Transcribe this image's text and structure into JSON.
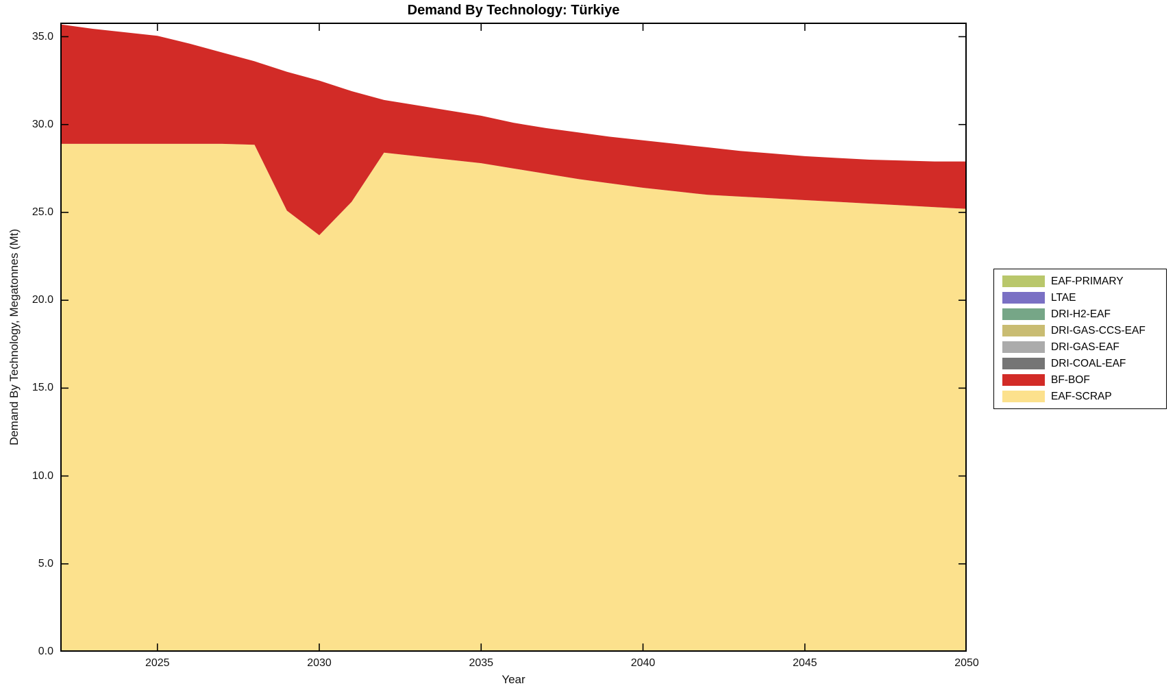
{
  "title": "Demand By Technology: Türkiye",
  "axes": {
    "xlabel": "Year",
    "ylabel": "Demand By Technology, Megatonnes (Mt)",
    "xtick_labels": [
      "2025",
      "2030",
      "2035",
      "2040",
      "2045",
      "2050"
    ],
    "ytick_labels": [
      "0.0",
      "5.0",
      "10.0",
      "15.0",
      "20.0",
      "25.0",
      "30.0",
      "35.0"
    ]
  },
  "legend": {
    "entries": [
      {
        "label": "EAF-PRIMARY",
        "color": "#b9c76b"
      },
      {
        "label": "LTAE",
        "color": "#7a70c4"
      },
      {
        "label": "DRI-H2-EAF",
        "color": "#76a687"
      },
      {
        "label": "DRI-GAS-CCS-EAF",
        "color": "#c9bc72"
      },
      {
        "label": "DRI-GAS-EAF",
        "color": "#ababab"
      },
      {
        "label": "DRI-COAL-EAF",
        "color": "#757575"
      },
      {
        "label": "BF-BOF",
        "color": "#d22b27"
      },
      {
        "label": "EAF-SCRAP",
        "color": "#fce18d"
      }
    ]
  },
  "style": {
    "frame_color": "#000000",
    "tick_length": 12
  },
  "chart_data": {
    "type": "area",
    "stacked": true,
    "title": "Demand By Technology: Türkiye",
    "xlabel": "Year",
    "ylabel": "Demand By Technology, Megatonnes (Mt)",
    "xlim": [
      2022,
      2050
    ],
    "ylim": [
      0,
      35.8
    ],
    "xticks": [
      2025,
      2030,
      2035,
      2040,
      2045,
      2050
    ],
    "yticks": [
      0,
      5,
      10,
      15,
      20,
      25,
      30,
      35
    ],
    "grid": false,
    "legend_position": "outside-right",
    "x": [
      2022,
      2023,
      2024,
      2025,
      2026,
      2027,
      2028,
      2029,
      2030,
      2031,
      2032,
      2033,
      2034,
      2035,
      2036,
      2037,
      2038,
      2039,
      2040,
      2041,
      2042,
      2043,
      2044,
      2045,
      2046,
      2047,
      2048,
      2049,
      2050
    ],
    "series": [
      {
        "name": "EAF-SCRAP",
        "color": "#fce18d",
        "values": [
          28.9,
          28.9,
          28.9,
          28.9,
          28.9,
          28.9,
          28.85,
          25.1,
          23.7,
          25.6,
          28.4,
          28.2,
          28.0,
          27.8,
          27.5,
          27.2,
          26.9,
          26.65,
          26.4,
          26.2,
          26.0,
          25.9,
          25.8,
          25.7,
          25.6,
          25.5,
          25.4,
          25.3,
          25.2
        ]
      },
      {
        "name": "BF-BOF",
        "color": "#d22b27",
        "values": [
          6.8,
          6.55,
          6.35,
          6.15,
          5.7,
          5.2,
          4.75,
          7.9,
          8.8,
          6.3,
          3.0,
          2.9,
          2.8,
          2.7,
          2.6,
          2.6,
          2.65,
          2.65,
          2.7,
          2.7,
          2.7,
          2.6,
          2.55,
          2.5,
          2.5,
          2.5,
          2.55,
          2.6,
          2.7
        ]
      },
      {
        "name": "DRI-COAL-EAF",
        "color": "#757575",
        "values": [
          0,
          0,
          0,
          0,
          0,
          0,
          0,
          0,
          0,
          0,
          0,
          0,
          0,
          0,
          0,
          0,
          0,
          0,
          0,
          0,
          0,
          0,
          0,
          0,
          0,
          0,
          0,
          0,
          0
        ]
      },
      {
        "name": "DRI-GAS-EAF",
        "color": "#ababab",
        "values": [
          0,
          0,
          0,
          0,
          0,
          0,
          0,
          0,
          0,
          0,
          0,
          0,
          0,
          0,
          0,
          0,
          0,
          0,
          0,
          0,
          0,
          0,
          0,
          0,
          0,
          0,
          0,
          0,
          0
        ]
      },
      {
        "name": "DRI-GAS-CCS-EAF",
        "color": "#c9bc72",
        "values": [
          0,
          0,
          0,
          0,
          0,
          0,
          0,
          0,
          0,
          0,
          0,
          0,
          0,
          0,
          0,
          0,
          0,
          0,
          0,
          0,
          0,
          0,
          0,
          0,
          0,
          0,
          0,
          0,
          0
        ]
      },
      {
        "name": "DRI-H2-EAF",
        "color": "#76a687",
        "values": [
          0,
          0,
          0,
          0,
          0,
          0,
          0,
          0,
          0,
          0,
          0,
          0,
          0,
          0,
          0,
          0,
          0,
          0,
          0,
          0,
          0,
          0,
          0,
          0,
          0,
          0,
          0,
          0,
          0
        ]
      },
      {
        "name": "LTAE",
        "color": "#7a70c4",
        "values": [
          0,
          0,
          0,
          0,
          0,
          0,
          0,
          0,
          0,
          0,
          0,
          0,
          0,
          0,
          0,
          0,
          0,
          0,
          0,
          0,
          0,
          0,
          0,
          0,
          0,
          0,
          0,
          0,
          0
        ]
      },
      {
        "name": "EAF-PRIMARY",
        "color": "#b9c76b",
        "values": [
          0,
          0,
          0,
          0,
          0,
          0,
          0,
          0,
          0,
          0,
          0,
          0,
          0,
          0,
          0,
          0,
          0,
          0,
          0,
          0,
          0,
          0,
          0,
          0,
          0,
          0,
          0,
          0,
          0
        ]
      }
    ]
  }
}
